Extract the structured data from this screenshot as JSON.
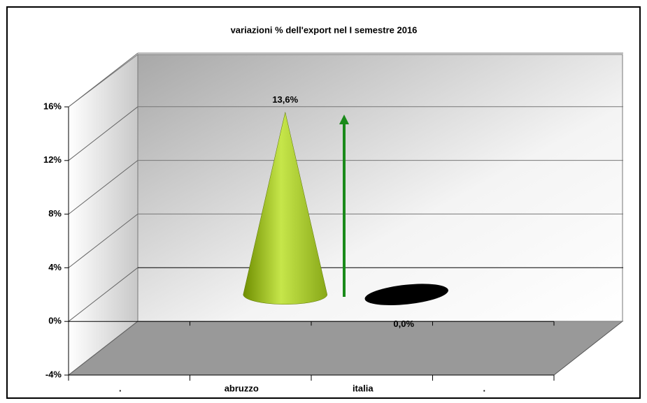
{
  "chart_data": {
    "type": "cone3d",
    "title": "variazioni % dell'export nel I semestre 2016",
    "categories": [
      ".",
      "abruzzo",
      "italia",
      "."
    ],
    "values": [
      null,
      13.6,
      0.0,
      null
    ],
    "value_labels": [
      null,
      "13,6%",
      "0,0%",
      null
    ],
    "colors": [
      null,
      "#9acd32",
      "#000000",
      null
    ],
    "ylim": [
      -4,
      16
    ],
    "yticks": [
      {
        "value": -4,
        "label": "-4%"
      },
      {
        "value": 0,
        "label": "0%"
      },
      {
        "value": 4,
        "label": "4%"
      },
      {
        "value": 8,
        "label": "8%"
      },
      {
        "value": 12,
        "label": "12%"
      },
      {
        "value": 16,
        "label": "16%"
      }
    ],
    "grid": true
  }
}
